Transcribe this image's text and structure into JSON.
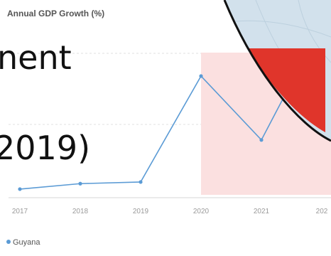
{
  "chart_data": {
    "type": "line",
    "title": "Annual GDP Growth (%)",
    "categories": [
      "2017",
      "2018",
      "2019",
      "2020",
      "2021",
      "202"
    ],
    "series": [
      {
        "name": "Guyana",
        "values": [
          2.1,
          4.1,
          4.7,
          43.5,
          20.1,
          62.3
        ]
      }
    ],
    "legend_position": "bottom-left",
    "highlight_range": [
      "2020",
      "202"
    ],
    "grid": true
  },
  "overlay_text": [
    "nent",
    "2019)"
  ],
  "colors": {
    "line": "#5b9bd5",
    "highlight": "#fbe0e0",
    "grid": "#e0e0e0",
    "flag_red": "#e0352b",
    "globe": "#d2e1ec"
  }
}
